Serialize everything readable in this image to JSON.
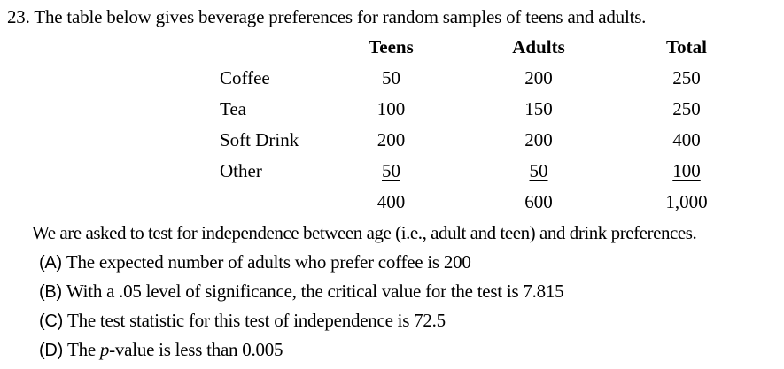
{
  "question": {
    "number": "23.",
    "text": "The table below gives beverage preferences for random samples of teens and adults."
  },
  "table": {
    "columns": {
      "col1": "",
      "col2": "Teens",
      "col3": "Adults",
      "col4": "Total"
    },
    "rows": [
      {
        "label": "Coffee",
        "teens": "50",
        "adults": "200",
        "total": "250"
      },
      {
        "label": "Tea",
        "teens": "100",
        "adults": "150",
        "total": "250"
      },
      {
        "label": "Soft Drink",
        "teens": "200",
        "adults": "200",
        "total": "400"
      },
      {
        "label": "Other",
        "teens": "50",
        "adults": "50",
        "total": "100"
      },
      {
        "label": "",
        "teens": "400",
        "adults": "600",
        "total": "1,000"
      }
    ]
  },
  "statement": "We are asked to test for independence between age (i.e., adult and teen) and drink preferences.",
  "options": [
    {
      "letter": "(A)",
      "pre": "The expected number of adults who prefer coffee is 200",
      "italic": "",
      "post": ""
    },
    {
      "letter": "(B)",
      "pre": "With a .05 level of significance, the critical value for the test is 7.815",
      "italic": "",
      "post": ""
    },
    {
      "letter": "(C)",
      "pre": "The test statistic for this test of independence is 72.5",
      "italic": "",
      "post": ""
    },
    {
      "letter": "(D)",
      "pre": "The ",
      "italic": "p",
      "post": "-value is less than 0.005"
    }
  ]
}
